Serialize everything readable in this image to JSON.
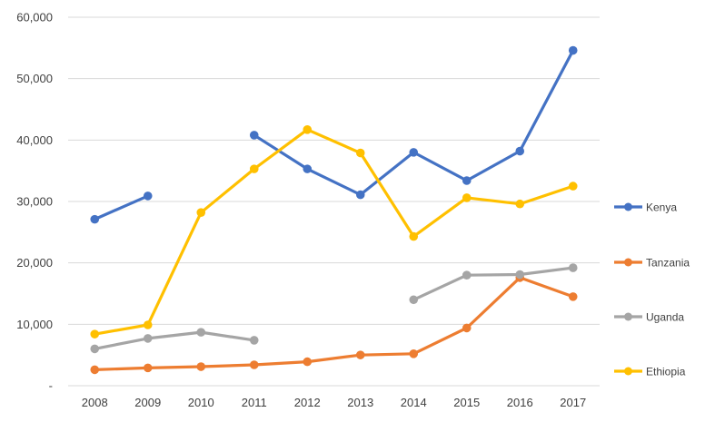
{
  "chart_data": {
    "type": "line",
    "title": "",
    "xlabel": "",
    "ylabel": "",
    "categories": [
      "2008",
      "2009",
      "2010",
      "2011",
      "2012",
      "2013",
      "2014",
      "2015",
      "2016",
      "2017"
    ],
    "ylim": [
      0,
      60000
    ],
    "yticks": [
      0,
      10000,
      20000,
      30000,
      40000,
      50000,
      60000
    ],
    "ytick_labels": [
      "-",
      "10,000",
      "20,000",
      "30,000",
      "40,000",
      "50,000",
      "60,000"
    ],
    "grid": true,
    "legend_position": "right",
    "series": [
      {
        "name": "Kenya",
        "color": "#4472c4",
        "values": [
          27100,
          30900,
          null,
          40800,
          35300,
          31100,
          38000,
          33400,
          38200,
          54600
        ]
      },
      {
        "name": "Tanzania",
        "color": "#ed7d31",
        "values": [
          2600,
          2900,
          3100,
          3400,
          3900,
          5000,
          5200,
          9400,
          17600,
          14500
        ]
      },
      {
        "name": "Uganda",
        "color": "#a5a5a5",
        "values": [
          6000,
          7700,
          8700,
          7400,
          null,
          null,
          14000,
          18000,
          18100,
          19200
        ]
      },
      {
        "name": "Ethiopia",
        "color": "#ffc000",
        "values": [
          8400,
          9900,
          28200,
          35300,
          41700,
          37900,
          24300,
          30600,
          29600,
          32500
        ]
      }
    ]
  }
}
